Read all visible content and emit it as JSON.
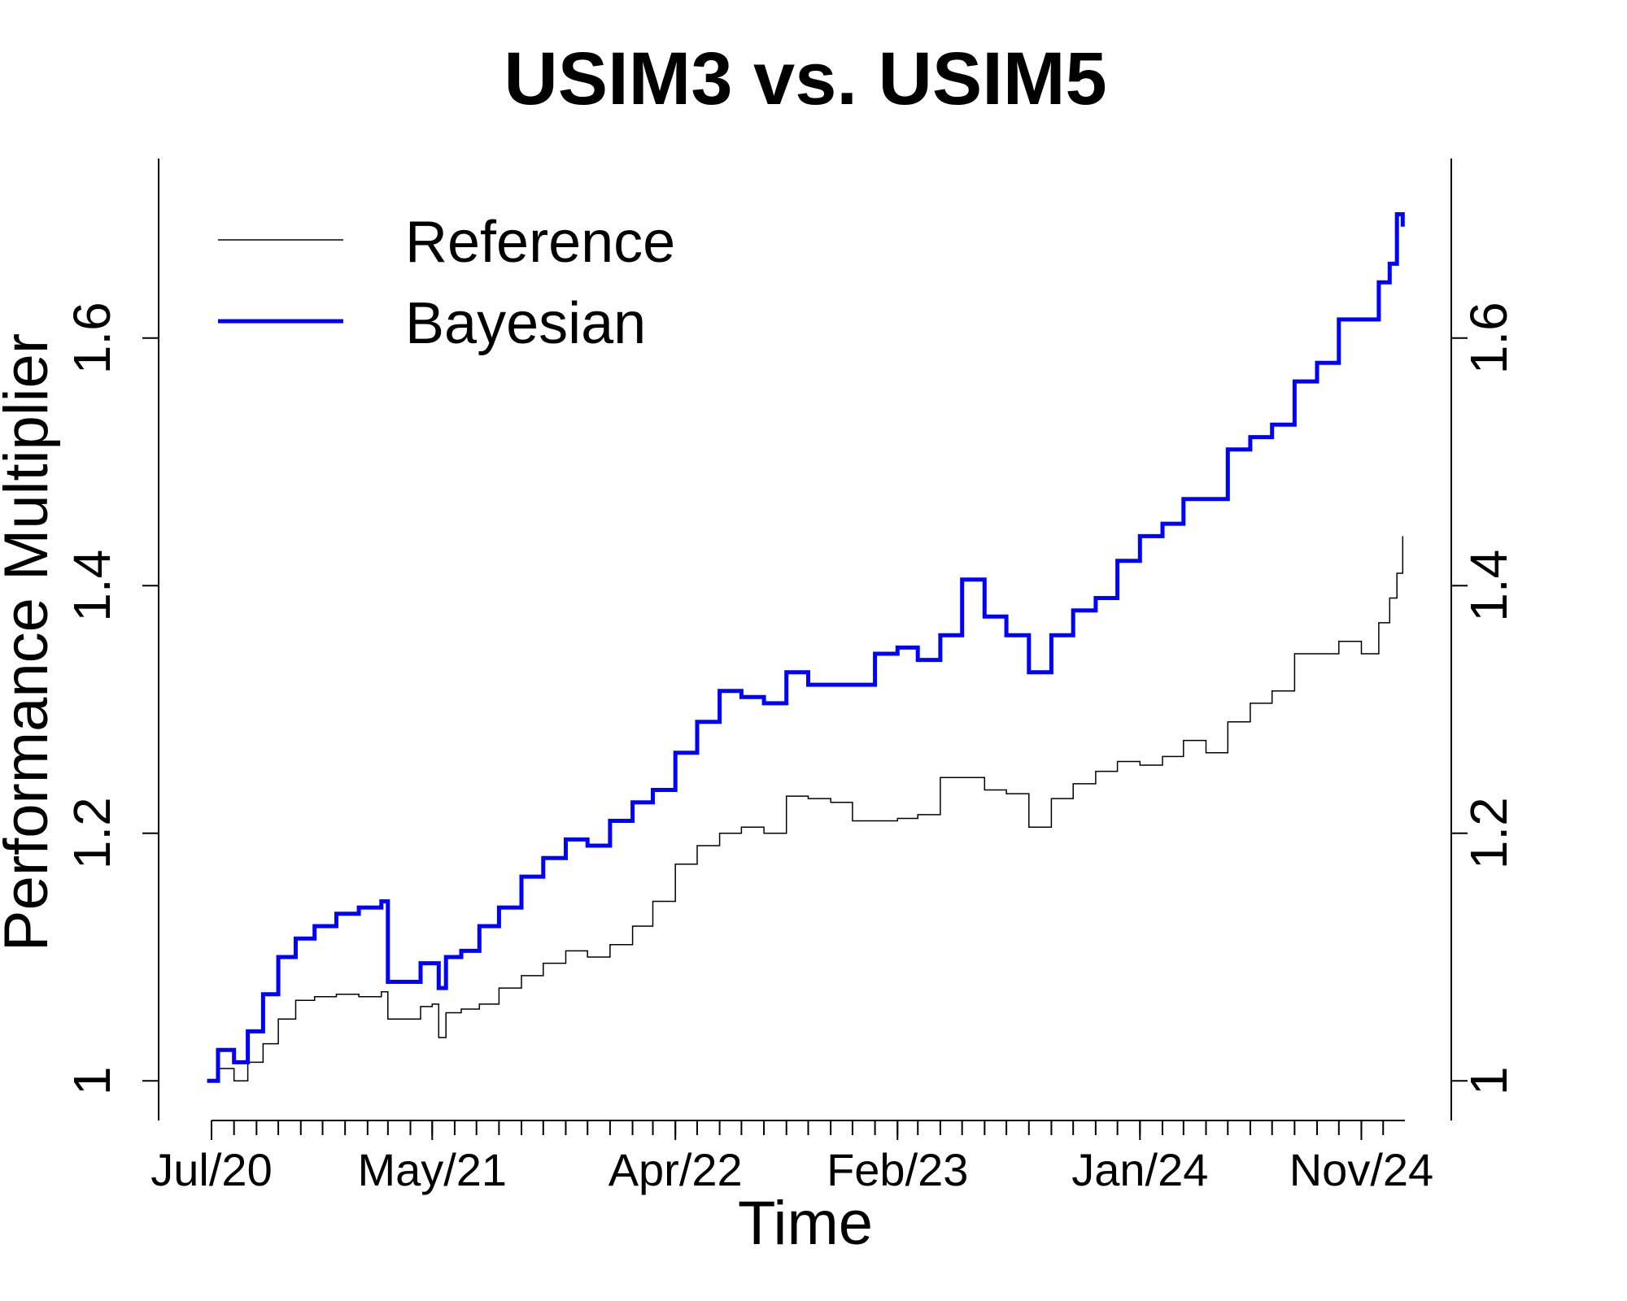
{
  "chart_data": {
    "type": "line",
    "title": "USIM3 vs. USIM5",
    "xlabel": "Time",
    "ylabel": "Performance Multiplier",
    "x_range": [
      "2020-07-01",
      "2024-12-31"
    ],
    "ylim": [
      0.968,
      1.745
    ],
    "y_ticks": [
      1,
      1.2,
      1.4,
      1.6
    ],
    "y_tick_labels": [
      "1",
      "1.2",
      "1.4",
      "1.6"
    ],
    "x_tick_labels": [
      {
        "date": "2020-07-01",
        "label": "Jul/20"
      },
      {
        "date": "2021-05-01",
        "label": "May/21"
      },
      {
        "date": "2022-04-01",
        "label": "Apr/22"
      },
      {
        "date": "2023-02-01",
        "label": "Feb/23"
      },
      {
        "date": "2024-01-01",
        "label": "Jan/24"
      },
      {
        "date": "2024-11-01",
        "label": "Nov/24"
      }
    ],
    "legend": {
      "position": "top-left"
    },
    "grid": false,
    "series": [
      {
        "name": "Reference",
        "color": "#000000",
        "x": [
          "2020-06-25",
          "2020-07-10",
          "2020-08-01",
          "2020-08-20",
          "2020-09-10",
          "2020-10-01",
          "2020-10-25",
          "2020-11-20",
          "2020-12-20",
          "2021-01-20",
          "2021-02-20",
          "2021-03-01",
          "2021-03-20",
          "2021-04-15",
          "2021-05-01",
          "2021-05-10",
          "2021-05-20",
          "2021-06-10",
          "2021-07-05",
          "2021-08-01",
          "2021-09-01",
          "2021-10-01",
          "2021-11-01",
          "2021-12-01",
          "2022-01-01",
          "2022-02-01",
          "2022-03-01",
          "2022-04-01",
          "2022-05-01",
          "2022-06-01",
          "2022-07-01",
          "2022-08-01",
          "2022-09-01",
          "2022-10-01",
          "2022-11-01",
          "2022-12-01",
          "2023-01-01",
          "2023-02-01",
          "2023-03-01",
          "2023-04-01",
          "2023-05-01",
          "2023-06-01",
          "2023-07-01",
          "2023-08-01",
          "2023-09-01",
          "2023-10-01",
          "2023-11-01",
          "2023-12-01",
          "2024-01-01",
          "2024-02-01",
          "2024-03-01",
          "2024-04-01",
          "2024-05-01",
          "2024-06-01",
          "2024-07-01",
          "2024-08-01",
          "2024-09-01",
          "2024-10-01",
          "2024-11-01",
          "2024-11-25",
          "2024-12-10",
          "2024-12-20",
          "2024-12-28"
        ],
        "y": [
          1.0,
          1.01,
          1.0,
          1.015,
          1.03,
          1.05,
          1.065,
          1.068,
          1.07,
          1.068,
          1.072,
          1.05,
          1.05,
          1.06,
          1.062,
          1.035,
          1.055,
          1.058,
          1.062,
          1.075,
          1.085,
          1.095,
          1.105,
          1.1,
          1.11,
          1.125,
          1.145,
          1.175,
          1.19,
          1.2,
          1.205,
          1.2,
          1.23,
          1.228,
          1.225,
          1.21,
          1.21,
          1.212,
          1.215,
          1.245,
          1.245,
          1.235,
          1.232,
          1.205,
          1.228,
          1.24,
          1.25,
          1.258,
          1.255,
          1.262,
          1.275,
          1.265,
          1.29,
          1.305,
          1.315,
          1.345,
          1.345,
          1.355,
          1.345,
          1.37,
          1.39,
          1.41,
          1.44
        ]
      },
      {
        "name": "Bayesian",
        "color": "#0000FF",
        "x": [
          "2020-06-25",
          "2020-07-10",
          "2020-08-01",
          "2020-08-20",
          "2020-09-10",
          "2020-10-01",
          "2020-10-25",
          "2020-11-20",
          "2020-12-20",
          "2021-01-20",
          "2021-02-20",
          "2021-03-01",
          "2021-03-20",
          "2021-04-15",
          "2021-05-01",
          "2021-05-10",
          "2021-05-20",
          "2021-06-10",
          "2021-07-05",
          "2021-08-01",
          "2021-09-01",
          "2021-10-01",
          "2021-11-01",
          "2021-12-01",
          "2022-01-01",
          "2022-02-01",
          "2022-03-01",
          "2022-04-01",
          "2022-05-01",
          "2022-06-01",
          "2022-07-01",
          "2022-08-01",
          "2022-09-01",
          "2022-10-01",
          "2022-11-01",
          "2022-12-01",
          "2023-01-01",
          "2023-02-01",
          "2023-03-01",
          "2023-04-01",
          "2023-05-01",
          "2023-06-01",
          "2023-07-01",
          "2023-08-01",
          "2023-09-01",
          "2023-10-01",
          "2023-11-01",
          "2023-12-01",
          "2024-01-01",
          "2024-02-01",
          "2024-03-01",
          "2024-04-01",
          "2024-05-01",
          "2024-06-01",
          "2024-07-01",
          "2024-08-01",
          "2024-09-01",
          "2024-10-01",
          "2024-11-01",
          "2024-11-25",
          "2024-12-10",
          "2024-12-20",
          "2024-12-28"
        ],
        "y": [
          1.0,
          1.025,
          1.015,
          1.04,
          1.07,
          1.1,
          1.115,
          1.125,
          1.135,
          1.14,
          1.145,
          1.08,
          1.08,
          1.095,
          1.095,
          1.075,
          1.1,
          1.105,
          1.125,
          1.14,
          1.165,
          1.18,
          1.195,
          1.19,
          1.21,
          1.225,
          1.235,
          1.265,
          1.29,
          1.315,
          1.31,
          1.305,
          1.33,
          1.32,
          1.32,
          1.32,
          1.345,
          1.35,
          1.34,
          1.36,
          1.405,
          1.375,
          1.36,
          1.33,
          1.36,
          1.38,
          1.39,
          1.42,
          1.44,
          1.45,
          1.47,
          1.47,
          1.51,
          1.52,
          1.53,
          1.565,
          1.58,
          1.615,
          1.615,
          1.645,
          1.66,
          1.7,
          1.69
        ]
      }
    ]
  }
}
